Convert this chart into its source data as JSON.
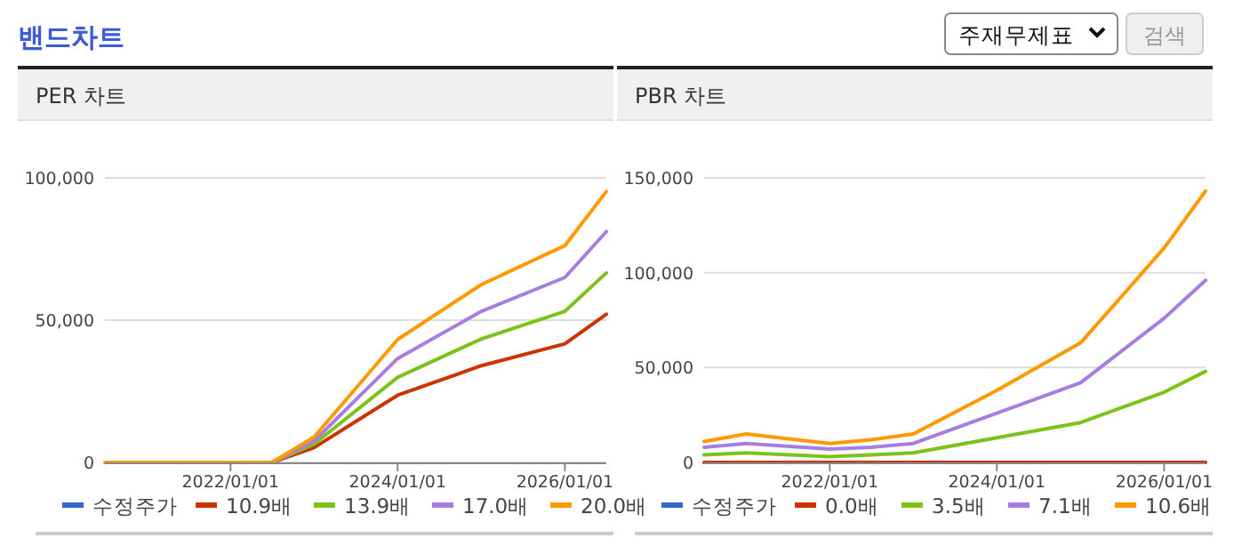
{
  "chart_data": [
    {
      "type": "line",
      "title": "PER 차트",
      "annotations": [
        "밴드차트",
        "주재무제표",
        "검색"
      ],
      "x": [
        "2020-07",
        "2021-01",
        "2022-01",
        "2022-07",
        "2023-01",
        "2024-01",
        "2025-01",
        "2026-01",
        "2026-07"
      ],
      "series": [
        {
          "name": "수정주가",
          "color": "#3366cc",
          "values": [
            null,
            null,
            null,
            null,
            null,
            null,
            null,
            null,
            null
          ]
        },
        {
          "name": "10.9배",
          "color": "#cc3300",
          "values": [
            null,
            null,
            null,
            0,
            5200,
            23600,
            34000,
            41700,
            52100
          ]
        },
        {
          "name": "13.9배",
          "color": "#7cc21a",
          "values": [
            null,
            null,
            null,
            0,
            6400,
            29900,
            43400,
            53100,
            66600
          ]
        },
        {
          "name": "17.0배",
          "color": "#a77ee0",
          "values": [
            null,
            null,
            null,
            0,
            7500,
            36500,
            53100,
            65000,
            81100
          ]
        },
        {
          "name": "20.0배",
          "color": "#ff9900",
          "values": [
            0,
            0,
            0,
            0,
            8900,
            43200,
            62500,
            76200,
            95200
          ]
        }
      ],
      "xlim": [
        "2020-07-01",
        "2026-07-01"
      ],
      "xticks": [
        {
          "value": "2022-01-01",
          "label": "2022/01/01"
        },
        {
          "value": "2024-01-01",
          "label": "2024/01/01"
        },
        {
          "value": "2026-01-01",
          "label": "2026/01/01"
        }
      ],
      "ylim": [
        0,
        100000
      ],
      "yticks": [
        0,
        {
          "value": 50000,
          "label": "50,000"
        },
        {
          "value": 100000,
          "label": "100,000"
        }
      ],
      "grid": "y",
      "legend": "bottom",
      "marker": "none",
      "line_style": "solid"
    },
    {
      "type": "line",
      "title": "PBR 차트",
      "x": [
        "2020-07",
        "2021-01",
        "2022-01",
        "2022-07",
        "2023-01",
        "2024-01",
        "2025-01",
        "2026-01",
        "2026-07"
      ],
      "series": [
        {
          "name": "수정주가",
          "color": "#3366cc",
          "values": [
            null,
            null,
            null,
            null,
            null,
            null,
            null,
            null,
            null
          ]
        },
        {
          "name": "0.0배",
          "color": "#cc3300",
          "values": [
            0,
            0,
            0,
            0,
            0,
            0,
            0,
            0,
            0
          ]
        },
        {
          "name": "3.5배",
          "color": "#7cc21a",
          "values": [
            4000,
            5000,
            3000,
            4000,
            5000,
            13000,
            21000,
            37000,
            48000
          ]
        },
        {
          "name": "7.1배",
          "color": "#a77ee0",
          "values": [
            8000,
            10000,
            7000,
            8000,
            10000,
            26000,
            42000,
            76000,
            96000
          ]
        },
        {
          "name": "10.6배",
          "color": "#ff9900",
          "values": [
            11000,
            15000,
            10000,
            12000,
            15000,
            38000,
            63000,
            113000,
            143000
          ]
        }
      ],
      "xlim": [
        "2020-07-01",
        "2026-07-01"
      ],
      "xticks": [
        {
          "value": "2022-01-01",
          "label": "2022/01/01"
        },
        {
          "value": "2024-01-01",
          "label": "2024/01/01"
        },
        {
          "value": "2026-01-01",
          "label": "2026/01/01"
        }
      ],
      "ylim": [
        0,
        150000
      ],
      "yticks": [
        0,
        {
          "value": 50000,
          "label": "50,000"
        },
        {
          "value": 100000,
          "label": "100,000"
        },
        {
          "value": 150000,
          "label": "150,000"
        }
      ],
      "grid": "y",
      "legend": "bottom",
      "marker": "none",
      "line_style": "solid"
    }
  ]
}
